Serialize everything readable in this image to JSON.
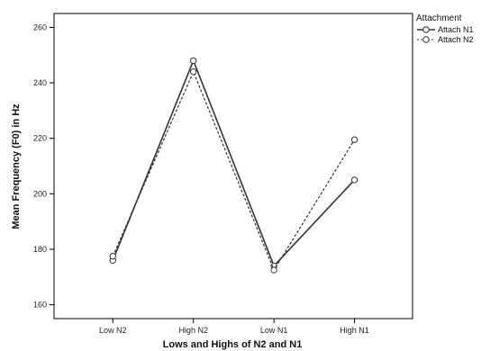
{
  "chart_data": {
    "type": "line",
    "categories": [
      "Low N2",
      "High N2",
      "Low N1",
      "High N1"
    ],
    "series": [
      {
        "name": "Attach N1",
        "values": [
          176,
          248,
          174,
          205
        ],
        "color": "#333333",
        "style": "solid"
      },
      {
        "name": "Attach N2",
        "values": [
          177.5,
          244,
          172.5,
          219.5
        ],
        "color": "#333333",
        "style": "dashed"
      }
    ],
    "xlabel": "Lows and Highs of N2 and N1",
    "ylabel": "Mean Frequency (F0) in Hz",
    "ylim": [
      155,
      265
    ],
    "yticks": [
      160,
      180,
      200,
      220,
      240,
      260
    ],
    "legend": {
      "title": "Attachment",
      "placement": "top-right-outside"
    },
    "marker": "open-circle",
    "grid": false
  }
}
